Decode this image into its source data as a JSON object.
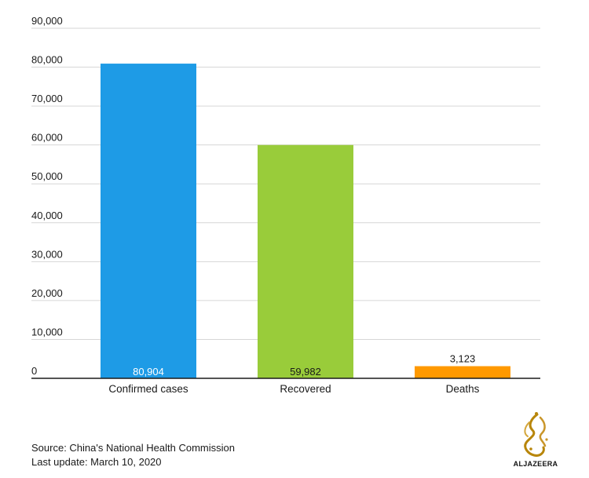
{
  "chart_data": {
    "type": "bar",
    "categories": [
      "Confirmed cases",
      "Recovered",
      "Deaths"
    ],
    "values": [
      80904,
      59982,
      3123
    ],
    "value_labels": [
      "80,904",
      "59,982",
      "3,123"
    ],
    "colors": [
      "#1e9be6",
      "#99cc3a",
      "#ff9900"
    ],
    "label_colors": [
      "#ffffff",
      "#1a1a1a",
      "#1a1a1a"
    ],
    "label_inside": [
      true,
      true,
      false
    ],
    "ylim": [
      0,
      90000
    ],
    "yticks": [
      0,
      10000,
      20000,
      30000,
      40000,
      50000,
      60000,
      70000,
      80000,
      90000
    ],
    "ytick_labels": [
      "0",
      "10,000",
      "20,000",
      "30,000",
      "40,000",
      "50,000",
      "60,000",
      "70,000",
      "80,000",
      "90,000"
    ],
    "grid": true,
    "title": "",
    "xlabel": "",
    "ylabel": ""
  },
  "footer": {
    "source": "Source: China's National Health Commission",
    "updated": "Last update: March 10, 2020"
  },
  "logo": {
    "text": "ALJAZEERA",
    "icon": "aljazeera-logo-icon"
  }
}
